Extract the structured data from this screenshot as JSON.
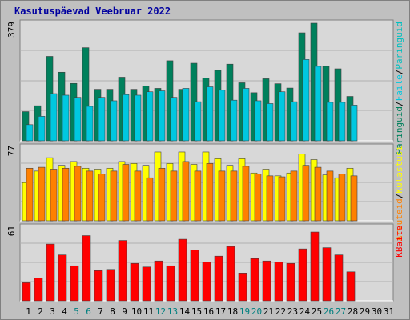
{
  "title": "Kasutuspäevad Veebruar 2022",
  "colors": {
    "background": "#c0c0c0",
    "plot": "#d8d8d8",
    "grid": "#b0b0b0",
    "title": "#0000a0",
    "weekend_label": "#008080",
    "visits": "#00805c",
    "files": "#00c8e0",
    "pages": "#00c0c0",
    "hits": "#ffff00",
    "sites": "#ff8000",
    "kbytes": "#ff0000"
  },
  "chart_data": [
    {
      "type": "bar",
      "panel": "top",
      "ymax_label": "379",
      "legend": [
        {
          "text": "Päringuid",
          "color": "#00805c"
        },
        {
          "text": "/",
          "color": "#000000"
        },
        {
          "text": "Faile",
          "color": "#00c8e0"
        },
        {
          "text": "/",
          "color": "#000000"
        },
        {
          "text": "Päringuid",
          "color": "#00c0c0"
        }
      ],
      "categories": [
        "1",
        "2",
        "3",
        "4",
        "5",
        "6",
        "7",
        "8",
        "9",
        "10",
        "11",
        "12",
        "13",
        "14",
        "15",
        "16",
        "17",
        "18",
        "19",
        "20",
        "21",
        "22",
        "23",
        "24",
        "25",
        "26",
        "27",
        "28",
        "29",
        "30",
        "31"
      ],
      "series": [
        {
          "name": "Päringuid",
          "values": [
            94,
            113,
            272,
            221,
            185,
            300,
            166,
            166,
            205,
            166,
            177,
            169,
            258,
            166,
            250,
            202,
            227,
            247,
            187,
            155,
            200,
            184,
            170,
            348,
            379,
            240,
            232,
            143,
            0,
            0,
            0
          ]
        },
        {
          "name": "Faile",
          "values": [
            52,
            79,
            152,
            147,
            140,
            111,
            140,
            129,
            149,
            147,
            158,
            161,
            140,
            169,
            126,
            174,
            163,
            131,
            169,
            129,
            120,
            158,
            126,
            262,
            240,
            124,
            124,
            115,
            0,
            0,
            0
          ]
        }
      ]
    },
    {
      "type": "bar",
      "panel": "middle",
      "ymax_label": "77",
      "legend": [
        {
          "text": "Arvuteid",
          "color": "#ff8000"
        },
        {
          "text": "/",
          "color": "#000000"
        },
        {
          "text": "Külastusi",
          "color": "#ffff00"
        }
      ],
      "categories": [
        "1",
        "2",
        "3",
        "4",
        "5",
        "6",
        "7",
        "8",
        "9",
        "10",
        "11",
        "12",
        "13",
        "14",
        "15",
        "16",
        "17",
        "18",
        "19",
        "20",
        "21",
        "22",
        "23",
        "24",
        "25",
        "26",
        "27",
        "28",
        "29",
        "30",
        "31"
      ],
      "series": [
        {
          "name": "Külastusi",
          "values": [
            40,
            52,
            66,
            58,
            62,
            55,
            54,
            55,
            62,
            60,
            58,
            72,
            60,
            72,
            59,
            72,
            65,
            58,
            65,
            50,
            54,
            47,
            50,
            70,
            64,
            48,
            45,
            55,
            0,
            0,
            0
          ]
        },
        {
          "name": "Arvuteid",
          "values": [
            55,
            56,
            54,
            55,
            57,
            52,
            49,
            52,
            59,
            52,
            45,
            55,
            52,
            62,
            52,
            60,
            52,
            52,
            57,
            49,
            47,
            46,
            52,
            58,
            56,
            52,
            49,
            47,
            0,
            0,
            0
          ]
        }
      ]
    },
    {
      "type": "bar",
      "panel": "bottom",
      "ymax_label": "61",
      "legend": [
        {
          "text": "KBaite",
          "color": "#ff0000"
        }
      ],
      "categories": [
        "1",
        "2",
        "3",
        "4",
        "5",
        "6",
        "7",
        "8",
        "9",
        "10",
        "11",
        "12",
        "13",
        "14",
        "15",
        "16",
        "17",
        "18",
        "19",
        "20",
        "21",
        "22",
        "23",
        "24",
        "25",
        "26",
        "27",
        "28",
        "29",
        "30",
        "31"
      ],
      "series": [
        {
          "name": "KBaite",
          "values": [
            15,
            19,
            47,
            38,
            29,
            54,
            25,
            26,
            50,
            31,
            28,
            33,
            29,
            51,
            42,
            32,
            37,
            45,
            23,
            35,
            33,
            32,
            31,
            43,
            57,
            44,
            38,
            24,
            0,
            0,
            0
          ]
        }
      ]
    }
  ],
  "x_labels": [
    {
      "text": "1",
      "weekend": false
    },
    {
      "text": "2",
      "weekend": false
    },
    {
      "text": "3",
      "weekend": false
    },
    {
      "text": "4",
      "weekend": false
    },
    {
      "text": "5",
      "weekend": true
    },
    {
      "text": "6",
      "weekend": true
    },
    {
      "text": "7",
      "weekend": false
    },
    {
      "text": "8",
      "weekend": false
    },
    {
      "text": "9",
      "weekend": false
    },
    {
      "text": "10",
      "weekend": false
    },
    {
      "text": "11",
      "weekend": false
    },
    {
      "text": "12",
      "weekend": true
    },
    {
      "text": "13",
      "weekend": true
    },
    {
      "text": "14",
      "weekend": false
    },
    {
      "text": "15",
      "weekend": false
    },
    {
      "text": "16",
      "weekend": false
    },
    {
      "text": "17",
      "weekend": false
    },
    {
      "text": "18",
      "weekend": false
    },
    {
      "text": "19",
      "weekend": true
    },
    {
      "text": "20",
      "weekend": true
    },
    {
      "text": "21",
      "weekend": false
    },
    {
      "text": "22",
      "weekend": false
    },
    {
      "text": "23",
      "weekend": false
    },
    {
      "text": "24",
      "weekend": false
    },
    {
      "text": "25",
      "weekend": false
    },
    {
      "text": "26",
      "weekend": true
    },
    {
      "text": "27",
      "weekend": true
    },
    {
      "text": "28",
      "weekend": false
    },
    {
      "text": "29",
      "weekend": false
    },
    {
      "text": "30",
      "weekend": false
    },
    {
      "text": "31",
      "weekend": false
    }
  ]
}
